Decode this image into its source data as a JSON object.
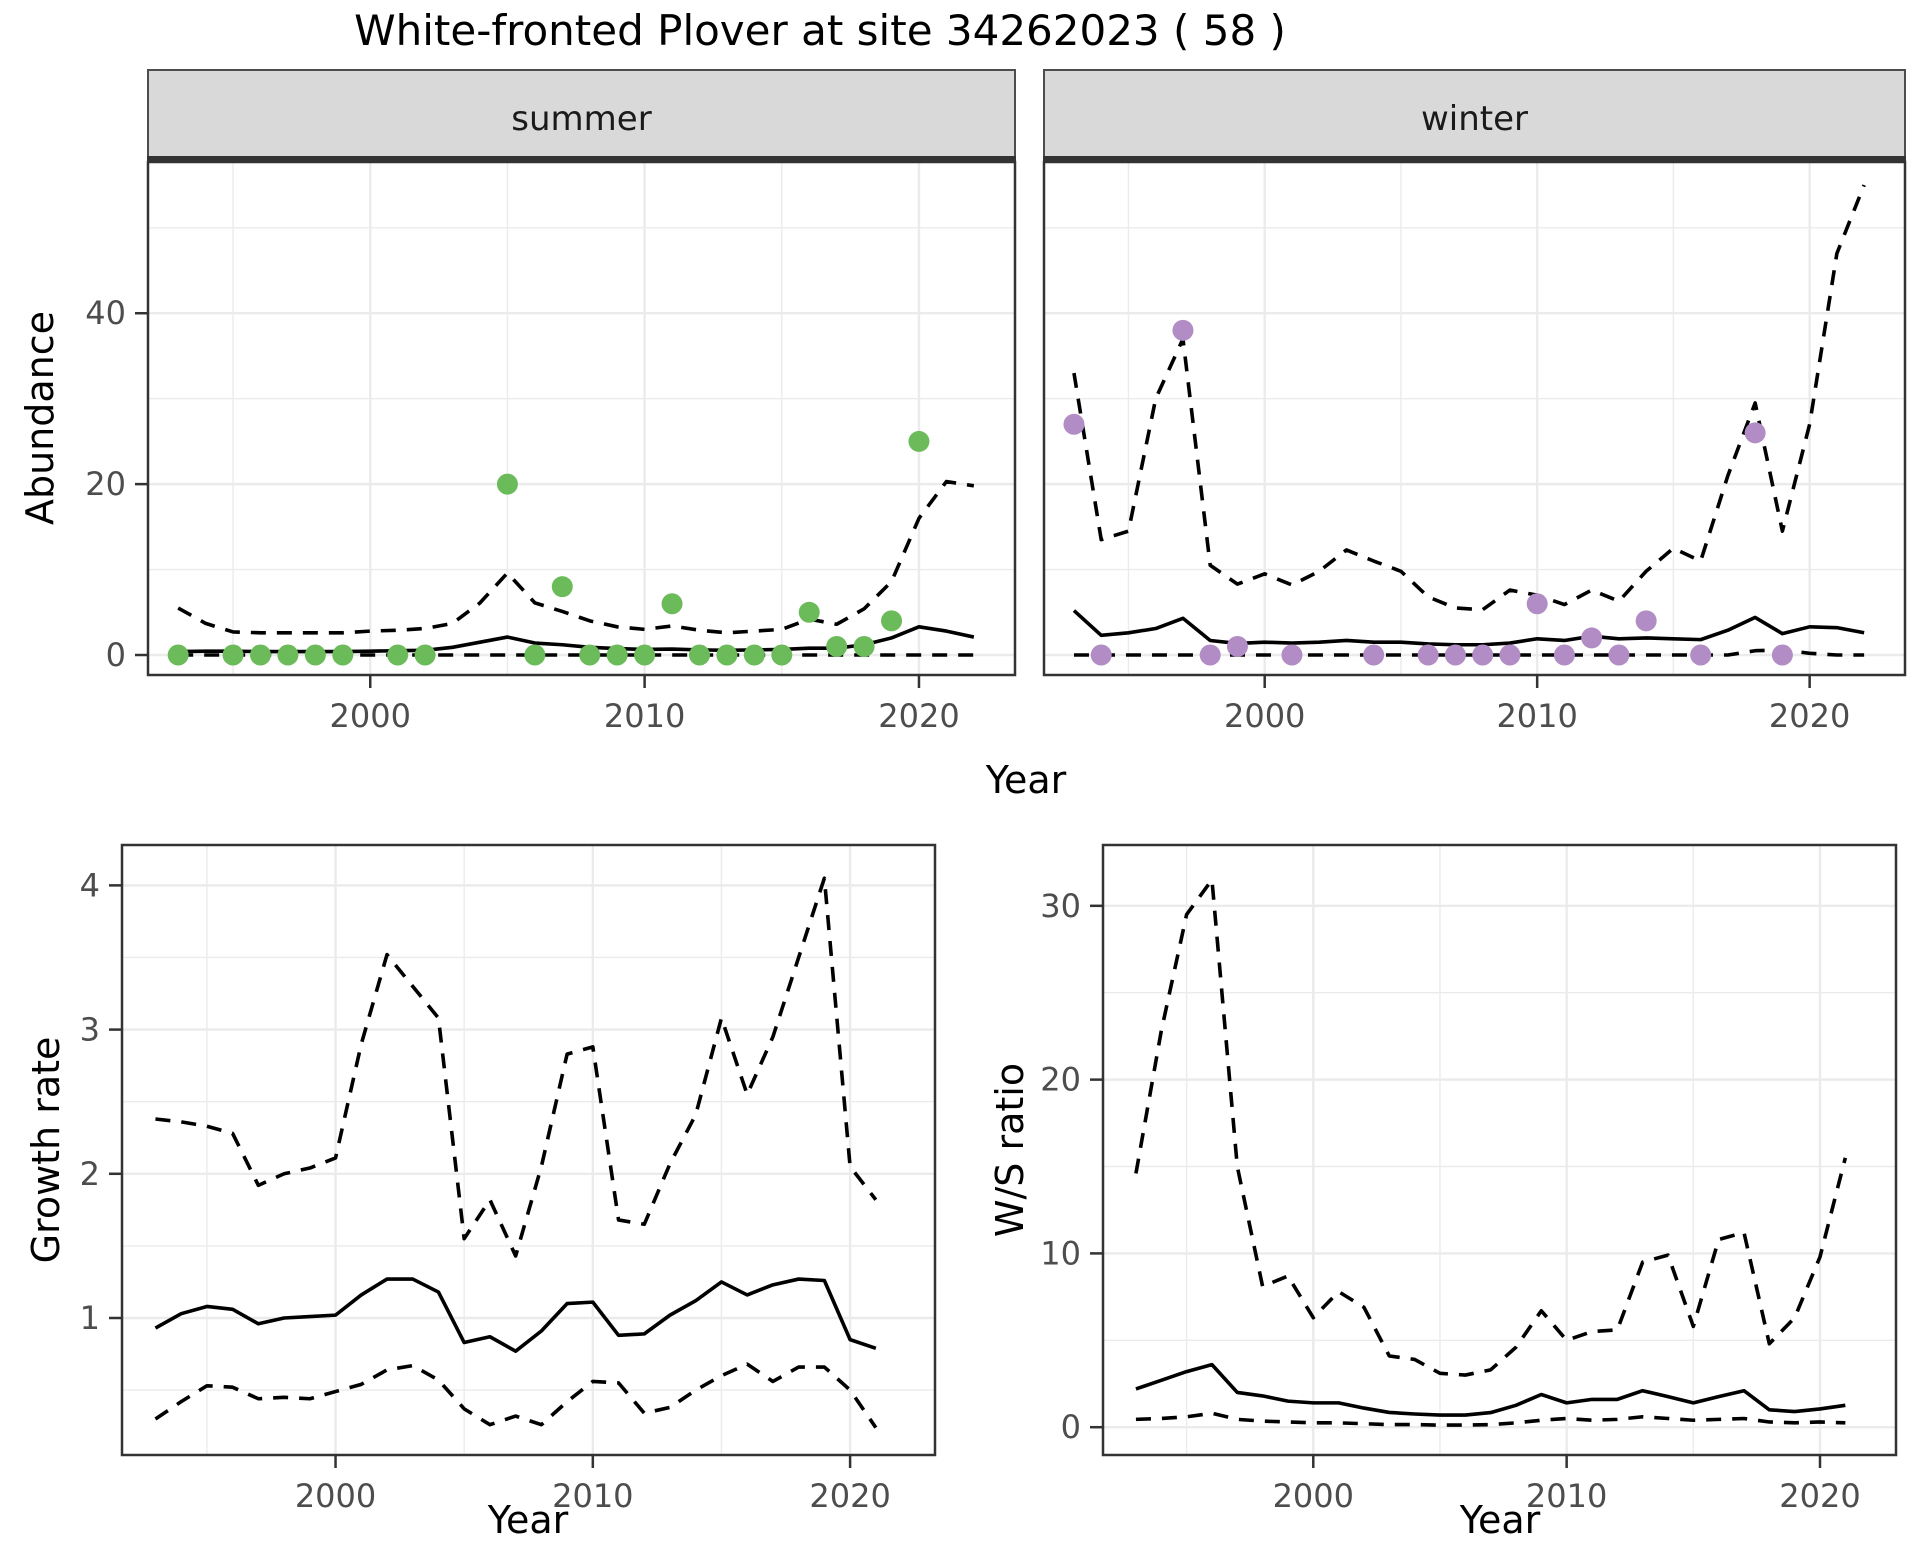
{
  "title": "White-fronted Plover at site 34262023 ( 58 )",
  "axis_titles": {
    "x": "Year",
    "abundance": "Abundance",
    "growth_rate": "Growth rate",
    "ws_ratio": "W/S ratio"
  },
  "facet_labels": {
    "summer": "summer",
    "winter": "winter"
  },
  "colors": {
    "summer_points": "#6CBB5A",
    "winter_points": "#B28CC4",
    "line": "#000000",
    "strip_bg": "#D9D9D9",
    "strip_border": "#4D4D4D",
    "grid": "#EBEBEB",
    "axis_text": "#4D4D4D",
    "panel_border": "#333333"
  },
  "chart_data": [
    {
      "id": "abundance-summer",
      "type": "line-with-points",
      "facet_label": "summer",
      "xlabel": "Year",
      "ylabel": "Abundance",
      "xlim": [
        1991.9,
        2023.5
      ],
      "ylim": [
        -2.34,
        57.7
      ],
      "xticks": [
        2000,
        2010,
        2020
      ],
      "xticks_minor": [
        1995,
        2005,
        2015
      ],
      "yticks": [
        0,
        20,
        40
      ],
      "yticks_minor": [
        10,
        30,
        50
      ],
      "years": [
        1993,
        1994,
        1995,
        1996,
        1997,
        1998,
        1999,
        2000,
        2001,
        2002,
        2003,
        2004,
        2005,
        2006,
        2007,
        2008,
        2009,
        2010,
        2011,
        2012,
        2013,
        2014,
        2015,
        2016,
        2017,
        2018,
        2019,
        2020,
        2021,
        2022
      ],
      "series": [
        {
          "name": "upper-ci",
          "linestyle": "dashed",
          "values": [
            5.5,
            3.7,
            2.7,
            2.6,
            2.6,
            2.6,
            2.6,
            2.8,
            2.9,
            3.1,
            3.7,
            6.1,
            9.6,
            6.1,
            5.1,
            4.0,
            3.3,
            3.0,
            3.4,
            2.9,
            2.6,
            2.8,
            3.0,
            4.2,
            3.6,
            5.4,
            8.6,
            16.0,
            20.3,
            19.8
          ]
        },
        {
          "name": "median",
          "linestyle": "solid",
          "values": [
            0.4,
            0.45,
            0.45,
            0.4,
            0.4,
            0.4,
            0.4,
            0.45,
            0.5,
            0.55,
            0.9,
            1.5,
            2.1,
            1.4,
            1.2,
            0.9,
            0.75,
            0.65,
            0.7,
            0.6,
            0.55,
            0.6,
            0.65,
            0.8,
            0.8,
            1.2,
            2.0,
            3.3,
            2.8,
            2.1
          ]
        },
        {
          "name": "lower-ci",
          "linestyle": "dashed",
          "values": [
            0,
            0,
            0,
            0,
            0,
            0,
            0,
            0,
            0,
            0,
            0,
            0,
            0,
            0,
            0,
            0,
            0,
            0,
            0,
            0,
            0,
            0,
            0,
            0,
            0,
            0,
            0,
            0,
            0,
            0
          ]
        }
      ],
      "points": {
        "name": "observed-summer-abundance",
        "color_key": "summer_points",
        "x": [
          1993,
          1995,
          1996,
          1997,
          1998,
          1999,
          2001,
          2002,
          2005,
          2006,
          2007,
          2008,
          2009,
          2010,
          2011,
          2012,
          2013,
          2014,
          2015,
          2016,
          2017,
          2018,
          2019,
          2020
        ],
        "y": [
          0,
          0,
          0,
          0,
          0,
          0,
          0,
          0,
          20,
          0,
          8,
          0,
          0,
          0,
          6,
          0,
          0,
          0,
          0,
          5,
          1,
          1,
          4,
          25
        ]
      }
    },
    {
      "id": "abundance-winter",
      "type": "line-with-points",
      "facet_label": "winter",
      "xlabel": "Year",
      "ylabel": "Abundance",
      "xlim": [
        1991.9,
        2023.5
      ],
      "ylim": [
        -2.34,
        57.7
      ],
      "xticks": [
        2000,
        2010,
        2020
      ],
      "xticks_minor": [
        1995,
        2005,
        2015
      ],
      "yticks": [
        0,
        20,
        40
      ],
      "yticks_minor": [
        10,
        30,
        50
      ],
      "years": [
        1993,
        1994,
        1995,
        1996,
        1997,
        1998,
        1999,
        2000,
        2001,
        2002,
        2003,
        2004,
        2005,
        2006,
        2007,
        2008,
        2009,
        2010,
        2011,
        2012,
        2013,
        2014,
        2015,
        2016,
        2017,
        2018,
        2019,
        2020,
        2021,
        2022
      ],
      "series": [
        {
          "name": "upper-ci",
          "linestyle": "dashed",
          "values": [
            33,
            13.5,
            14.5,
            30,
            37,
            10.5,
            8.3,
            9.5,
            8.2,
            9.8,
            12.3,
            11,
            9.8,
            6.8,
            5.5,
            5.3,
            7.6,
            7.0,
            5.9,
            7.6,
            6.3,
            9.8,
            12.5,
            11.0,
            21,
            29.5,
            14.5,
            27,
            47,
            55
          ]
        },
        {
          "name": "median",
          "linestyle": "solid",
          "values": [
            5.2,
            2.3,
            2.6,
            3.1,
            4.3,
            1.7,
            1.35,
            1.5,
            1.4,
            1.5,
            1.7,
            1.5,
            1.5,
            1.3,
            1.2,
            1.2,
            1.4,
            1.9,
            1.7,
            2.2,
            1.9,
            2.0,
            1.9,
            1.8,
            2.9,
            4.4,
            2.5,
            3.3,
            3.2,
            2.6
          ]
        },
        {
          "name": "lower-ci",
          "linestyle": "dashed",
          "values": [
            0,
            0,
            0,
            0,
            0,
            0,
            0,
            0,
            0,
            0,
            0,
            0,
            0,
            0,
            0,
            0,
            0,
            0,
            0,
            0,
            0,
            0,
            0,
            0,
            0,
            0.5,
            0.6,
            0.2,
            0,
            0
          ]
        }
      ],
      "points": {
        "name": "observed-winter-abundance",
        "color_key": "winter_points",
        "x": [
          1993,
          1994,
          1997,
          1998,
          1999,
          2001,
          2004,
          2006,
          2007,
          2008,
          2009,
          2010,
          2011,
          2012,
          2013,
          2014,
          2016,
          2018,
          2019
        ],
        "y": [
          27,
          0,
          38,
          0,
          1,
          0,
          0,
          0,
          0,
          0,
          0,
          6,
          0,
          2,
          0,
          4,
          0,
          26,
          0
        ]
      }
    },
    {
      "id": "growth-rate",
      "type": "line",
      "facet_label": "",
      "xlabel": "Year",
      "ylabel": "Growth rate",
      "xlim": [
        1991.7,
        2023.3
      ],
      "ylim": [
        0.05,
        4.28
      ],
      "xticks": [
        2000,
        2010,
        2020
      ],
      "xticks_minor": [
        1995,
        2005,
        2015
      ],
      "yticks": [
        1,
        2,
        3,
        4
      ],
      "yticks_minor": [
        0.5,
        1.5,
        2.5,
        3.5
      ],
      "years": [
        1993,
        1994,
        1995,
        1996,
        1997,
        1998,
        1999,
        2000,
        2001,
        2002,
        2003,
        2004,
        2005,
        2006,
        2007,
        2008,
        2009,
        2010,
        2011,
        2012,
        2013,
        2014,
        2015,
        2016,
        2017,
        2018,
        2019,
        2020,
        2021
      ],
      "series": [
        {
          "name": "upper-ci",
          "linestyle": "dashed",
          "values": [
            2.38,
            2.36,
            2.33,
            2.28,
            1.92,
            2.0,
            2.04,
            2.11,
            2.9,
            3.52,
            3.3,
            3.08,
            1.55,
            1.82,
            1.43,
            2.05,
            2.83,
            2.88,
            1.68,
            1.65,
            2.07,
            2.41,
            3.08,
            2.55,
            2.95,
            3.5,
            4.05,
            2.05,
            1.82
          ]
        },
        {
          "name": "median",
          "linestyle": "solid",
          "values": [
            0.93,
            1.03,
            1.08,
            1.06,
            0.96,
            1.0,
            1.01,
            1.02,
            1.16,
            1.27,
            1.27,
            1.18,
            0.83,
            0.87,
            0.77,
            0.91,
            1.1,
            1.11,
            0.88,
            0.89,
            1.02,
            1.12,
            1.25,
            1.16,
            1.23,
            1.27,
            1.26,
            0.85,
            0.79
          ]
        },
        {
          "name": "lower-ci",
          "linestyle": "dashed",
          "values": [
            0.3,
            0.42,
            0.53,
            0.52,
            0.44,
            0.45,
            0.44,
            0.49,
            0.54,
            0.64,
            0.67,
            0.57,
            0.37,
            0.26,
            0.32,
            0.26,
            0.42,
            0.56,
            0.55,
            0.34,
            0.38,
            0.5,
            0.6,
            0.68,
            0.56,
            0.66,
            0.66,
            0.5,
            0.24
          ]
        }
      ]
    },
    {
      "id": "ws-ratio",
      "type": "line",
      "facet_label": "",
      "xlabel": "Year",
      "ylabel": "W/S ratio",
      "xlim": [
        1991.7,
        2023.0
      ],
      "ylim": [
        -1.6,
        33.5
      ],
      "xticks": [
        2000,
        2010,
        2020
      ],
      "xticks_minor": [
        1995,
        2005,
        2015
      ],
      "yticks": [
        0,
        10,
        20,
        30
      ],
      "yticks_minor": [
        5,
        15,
        25
      ],
      "years": [
        1993,
        1994,
        1995,
        1996,
        1997,
        1998,
        1999,
        2000,
        2001,
        2002,
        2003,
        2004,
        2005,
        2006,
        2007,
        2008,
        2009,
        2010,
        2011,
        2012,
        2013,
        2014,
        2015,
        2016,
        2017,
        2018,
        2019,
        2020,
        2021
      ],
      "series": [
        {
          "name": "upper-ci",
          "linestyle": "dashed",
          "values": [
            14.6,
            22.8,
            29.5,
            31.5,
            15.0,
            8.1,
            8.7,
            6.3,
            7.8,
            6.9,
            4.1,
            3.9,
            3.1,
            3.0,
            3.3,
            4.6,
            6.7,
            5.0,
            5.5,
            5.6,
            9.5,
            9.9,
            5.8,
            10.8,
            11.2,
            4.8,
            6.3,
            9.8,
            15.5
          ]
        },
        {
          "name": "median",
          "linestyle": "solid",
          "values": [
            2.2,
            2.7,
            3.2,
            3.6,
            2.0,
            1.8,
            1.5,
            1.4,
            1.4,
            1.1,
            0.85,
            0.76,
            0.7,
            0.7,
            0.84,
            1.26,
            1.88,
            1.4,
            1.6,
            1.6,
            2.1,
            1.76,
            1.4,
            1.76,
            2.1,
            1.0,
            0.9,
            1.05,
            1.26
          ]
        },
        {
          "name": "lower-ci",
          "linestyle": "dashed",
          "values": [
            0.45,
            0.5,
            0.6,
            0.8,
            0.45,
            0.35,
            0.3,
            0.25,
            0.25,
            0.2,
            0.15,
            0.15,
            0.12,
            0.12,
            0.15,
            0.25,
            0.4,
            0.5,
            0.4,
            0.45,
            0.6,
            0.5,
            0.4,
            0.45,
            0.5,
            0.3,
            0.25,
            0.3,
            0.25
          ]
        }
      ]
    }
  ]
}
